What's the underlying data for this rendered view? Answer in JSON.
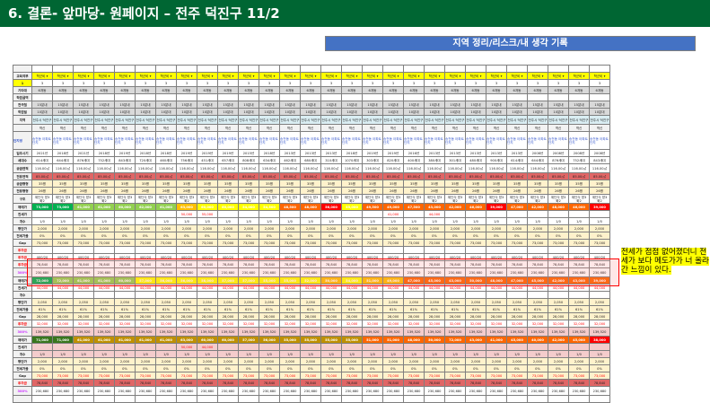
{
  "title": "6. 결론- 앞마당- 원페이지 – 전주 덕진구 11/2",
  "region_header": "지역 정리/리스크/내 생각 기록",
  "callout": "전세가 점점 없어졌더니 전세가 보다 메도가가 너 올라간 느낌이 있다.",
  "colors": {
    "title_bg": "#006633",
    "region_bg": "#4472c4",
    "highlight": "#ffff00",
    "alert_box": "#ff0000"
  },
  "sheet": {
    "columns": 28,
    "rows": [
      {
        "label": "",
        "fill": "",
        "bg": "#ffffff"
      },
      {
        "label": "교육여부",
        "fill": "학군비 ▾",
        "bg": "#ffff00"
      },
      {
        "label": "1",
        "fill": "3",
        "bg": "#ffffff",
        "lblbg": "#ffff00"
      },
      {
        "label": "기타대",
        "fill": "6개동",
        "bg": "#d9d9d9"
      },
      {
        "label": "학원굴역",
        "fill": "",
        "bg": "#ffffff"
      },
      {
        "label": "전극철",
        "fill": "15분내",
        "bg": "#d9d9d9"
      },
      {
        "label": "학원밀",
        "fill": "10분대",
        "bg": "#d9d9d9"
      },
      {
        "label": "지역",
        "fill": "전주시 덕진구",
        "bg": "#daeef3",
        "cls": "tall"
      },
      {
        "label": "",
        "fill": "역신",
        "bg": "#f2f2f2"
      },
      {
        "label": "단지명",
        "fill": "송천동 아파트 단지",
        "bg": "#ffffff",
        "cls": "xtall"
      },
      {
        "label": "입주시기",
        "values": [
          "2021년",
          "2018년",
          "2021년",
          "2018년",
          "2019년",
          "2018년",
          "2018년",
          "2019년",
          "2019년",
          "2019년",
          "2015년",
          "2018년",
          "2013년",
          "2013년",
          "2013년",
          "2018년",
          "2019년",
          "2019년",
          "2016년",
          "2013년",
          "2013년",
          "2013년",
          "2013년",
          "2013년",
          "2008년",
          "2008년",
          "2008년",
          "2008년"
        ],
        "bg": "#ffffff"
      },
      {
        "label": "세대수",
        "values": [
          "614세대",
          "644세대",
          "876세대",
          "752세대",
          "843세대",
          "720세대",
          "460세대",
          "756세대",
          "451세대",
          "657세대",
          "808세대",
          "634세대",
          "462세대",
          "680세대",
          "310세대",
          "1070세대",
          "303세대",
          "820세대",
          "400세대",
          "380세대",
          "301세대",
          "480세대",
          "900세대",
          "614세대",
          "644세대",
          "876세대",
          "752세대",
          "843세대"
        ],
        "bg": "#ffffff"
      },
      {
        "label": "공급면적",
        "fill": "116.00㎡",
        "bg": "#ffffff"
      },
      {
        "label": "전용면적",
        "fill": "85.00㎡",
        "bg": "#e06666"
      },
      {
        "label": "공급평형",
        "fill": "35평",
        "bg": "#fff2cc"
      },
      {
        "label": "전용평형",
        "fill": "26평",
        "bg": "#fff2cc"
      },
      {
        "label": "구조",
        "fill": "계단식 방3 화2",
        "bg": "#ffffff"
      },
      {
        "label": "매매가",
        "values": [
          "73,000",
          "73,000",
          "61,000",
          "61,000",
          "60,000",
          "62,000",
          "61,000",
          "63,000",
          "60,000",
          "60,000",
          "54,000",
          "54,500",
          "48,500",
          "48,000",
          "56,000",
          "55,000",
          "49,500",
          "49,000",
          "47,500",
          "43,000",
          "42,000",
          "46,000",
          "39,000",
          "47,000",
          "42,000",
          "48,000",
          "46,000",
          "39,000"
        ],
        "colors": [
          "#00b050",
          "#00b050",
          "#92d050",
          "#92d050",
          "#92d050",
          "#92d050",
          "#92d050",
          "#ffc000",
          "#ffff00",
          "#ffff00",
          "#ffff00",
          "#ffff00",
          "#ff6600",
          "#ff6600",
          "#ff0000",
          "#ffff00",
          "#ff6600",
          "#ff6600",
          "#ff6600",
          "#ff6600",
          "#ff6600",
          "#ff6600",
          "#ff0000",
          "#ff6600",
          "#ff6600",
          "#ff6600",
          "#ff6600",
          "#ff0000"
        ]
      },
      {
        "label": "전세가",
        "values": [
          "",
          "",
          "",
          "",
          "",
          "",
          "",
          "50,000",
          "55,000",
          "",
          "",
          "",
          "",
          "",
          "",
          "",
          "",
          "41,000",
          "",
          "44,000",
          "",
          "",
          "",
          "",
          "",
          "",
          "",
          ""
        ],
        "bg": "#ffffff",
        "color": "#ff0000"
      },
      {
        "label": "개수",
        "fill": "1/0",
        "bg": "#ffffff"
      },
      {
        "label": "평단가",
        "fill": "2,000",
        "bg": "#fff2cc"
      },
      {
        "label": "전세가율",
        "fill": "0%",
        "bg": "#fff2cc"
      },
      {
        "label": "Gap",
        "fill": "73,000",
        "bg": "#fff2cc"
      },
      {
        "label": "투자금",
        "fill": "",
        "bg": "#ffffff",
        "lblcolor": "#ff0000"
      },
      {
        "label": "투자금",
        "fill": "400/20",
        "bg": "#ffffff",
        "lblcolor": "#ff0000"
      },
      {
        "label": "투자금",
        "fill": "78,840",
        "bg": "#ffffff",
        "lblcolor": "#ff0000"
      },
      {
        "label": "300%",
        "fill": "230,680",
        "bg": "#ffffff",
        "lblcolor": "#cc33ff"
      },
      {
        "label": "매매가",
        "values": [
          "72,000",
          "72,000",
          "61,000",
          "61,000",
          "60,000",
          "57,000",
          "56,000",
          "56,000",
          "58,000",
          "57,000",
          "57,000",
          "55,000",
          "55,000",
          "52,000",
          "50,000",
          "54,000",
          "51,000",
          "49,000",
          "47,000",
          "45,000",
          "43,000",
          "50,000",
          "48,000",
          "47,000",
          "45,000",
          "42,000",
          "43,000",
          "39,000"
        ],
        "colors": [
          "#00b050",
          "#92d050",
          "#92d050",
          "#92d050",
          "#92d050",
          "#ffff00",
          "#ffff00",
          "#ffff00",
          "#ffff00",
          "#ffff00",
          "#ffff00",
          "#ffff00",
          "#ffff00",
          "#ffff00",
          "#ffc000",
          "#ffff00",
          "#ffc000",
          "#ffc000",
          "#ff6600",
          "#ff6600",
          "#ff6600",
          "#ff6600",
          "#ff6600",
          "#ff6600",
          "#ff6600",
          "#ff6600",
          "#ff6600",
          "#ff6600"
        ]
      },
      {
        "label": "전세가",
        "fill": "44,000",
        "bg": "#ffffff",
        "color": "#ff0000"
      },
      {
        "label": "개수",
        "fill": "",
        "bg": "#ffffff"
      },
      {
        "label": "평단가",
        "fill": "2,050",
        "bg": "#fff2cc"
      },
      {
        "label": "전세가율",
        "fill": "61%",
        "bg": "#fff2cc"
      },
      {
        "label": "Gap",
        "fill": "28,000",
        "bg": "#fff2cc"
      },
      {
        "label": "투자금",
        "fill": "32,000",
        "bg": "#ffffff",
        "lblcolor": "#ff0000",
        "color": "#ff0000"
      },
      {
        "label": "300%",
        "fill": "139,520",
        "bg": "#f4cccc",
        "lblcolor": "#cc33ff"
      },
      {
        "label": "매매가",
        "values": [
          "71,000",
          "71,000",
          "61,000",
          "61,000",
          "61,000",
          "61,000",
          "61,000",
          "63,000",
          "60,000",
          "60,000",
          "57,000",
          "56,000",
          "55,000",
          "55,000",
          "55,000",
          "55,000",
          "51,000",
          "51,000",
          "48,000",
          "50,000",
          "72,000",
          "43,000",
          "41,000",
          "45,000",
          "40,000",
          "42,000",
          "45,000",
          "38,000"
        ],
        "colors": [
          "#38761d",
          "#38761d",
          "#bf9000",
          "#bf9000",
          "#bf9000",
          "#bf9000",
          "#bf9000",
          "#bf9000",
          "#bf9000",
          "#bf9000",
          "#bf9000",
          "#bf9000",
          "#bf9000",
          "#bf9000",
          "#bf9000",
          "#bf9000",
          "#ff6600",
          "#ff6600",
          "#ff6600",
          "#ff6600",
          "#ff6600",
          "#ff6600",
          "#ff6600",
          "#ff6600",
          "#ff6600",
          "#ff6600",
          "#ff6600",
          "#ff0000"
        ]
      },
      {
        "label": "전세가",
        "values": [
          "",
          "",
          "",
          "",
          "",
          "",
          "",
          "50,000",
          "44,000",
          "",
          "",
          "",
          "",
          "",
          "",
          "",
          "",
          "",
          "",
          "",
          "",
          "",
          "",
          "",
          "",
          "",
          "",
          ""
        ],
        "bg": "#f4cccc",
        "color": "#ff0000"
      },
      {
        "label": "개수",
        "fill": "1/0",
        "bg": "#f4cccc"
      },
      {
        "label": "평단가",
        "fill": "2,000",
        "bg": "#fff2cc"
      },
      {
        "label": "전세가율",
        "fill": "0%",
        "bg": "#fff2cc"
      },
      {
        "label": "Gap",
        "fill": "73,000",
        "bg": "#fff2cc",
        "color": "#ff0000"
      },
      {
        "label": "투자금",
        "fill": "78,840",
        "bg": "#e06666",
        "lblcolor": "#ff0000"
      },
      {
        "label": "300%",
        "fill": "230,680",
        "bg": "#ffffff",
        "lblcolor": "#cc33ff"
      },
      {
        "label": "",
        "fill": "",
        "bg": "#ffffff"
      }
    ]
  }
}
